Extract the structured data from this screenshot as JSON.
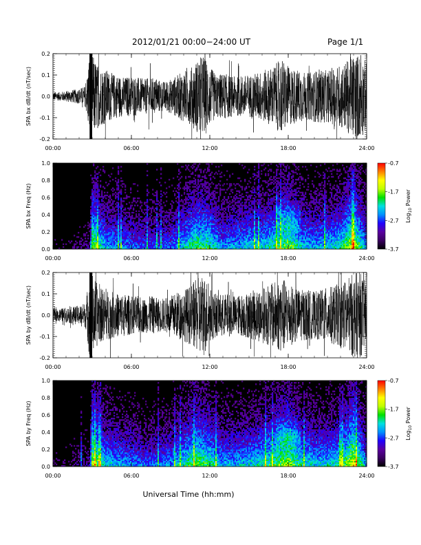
{
  "header": {
    "title": "2012/01/21  00:00−24:00 UT",
    "page": "Page 1/1"
  },
  "footer": {
    "xlabel": "Universal Time (hh:mm)"
  },
  "colorbar": {
    "label_base": "Log",
    "label_sub": "10",
    "label_tail": " Power",
    "ticks": [
      "-0.7",
      "-1.7",
      "-2.7",
      "-3.7"
    ],
    "range": [
      -3.7,
      -0.7
    ]
  },
  "colors": {
    "trace": "#000000",
    "spectrogram_background": "#000000",
    "colormap": [
      "#000000",
      "#3a0060",
      "#5a00a0",
      "#2000ff",
      "#0090ff",
      "#00e0e0",
      "#00e000",
      "#c0ff00",
      "#ffff00",
      "#ff8000",
      "#ff0000"
    ]
  },
  "chart_data": [
    {
      "type": "line",
      "ylabel": "SPA bx dB/dt (nT/sec)",
      "xticks": [
        "00:00",
        "06:00",
        "12:00",
        "18:00",
        "24:00"
      ],
      "yticks": [
        "-0.2",
        "-0.1",
        "0.0",
        "0.1",
        "0.2"
      ],
      "xlim_hours": [
        0,
        24
      ],
      "ylim": [
        -0.2,
        0.2
      ],
      "series": [
        {
          "x_hours": [
            0,
            0.5,
            1,
            1.5,
            2,
            2.5,
            2.8,
            3,
            3.5,
            4,
            4.5,
            5,
            5.5,
            6,
            6.5,
            7,
            7.5,
            8,
            8.5,
            9,
            9.5,
            10,
            10.5,
            11,
            11.5,
            12,
            12.5,
            13,
            13.5,
            14,
            14.5,
            15,
            15.5,
            16,
            16.5,
            17,
            17.5,
            18,
            18.5,
            19,
            19.5,
            20,
            20.5,
            21,
            21.5,
            22,
            22.5,
            23,
            23.5,
            24
          ],
          "envelope_amplitude": [
            0.02,
            0.02,
            0.025,
            0.03,
            0.035,
            0.05,
            0.2,
            0.2,
            0.14,
            0.13,
            0.11,
            0.1,
            0.09,
            0.1,
            0.09,
            0.08,
            0.09,
            0.08,
            0.07,
            0.08,
            0.1,
            0.12,
            0.13,
            0.17,
            0.2,
            0.14,
            0.1,
            0.11,
            0.1,
            0.09,
            0.1,
            0.1,
            0.11,
            0.12,
            0.13,
            0.15,
            0.18,
            0.14,
            0.13,
            0.12,
            0.11,
            0.12,
            0.13,
            0.12,
            0.14,
            0.15,
            0.17,
            0.2,
            0.2,
            0.16
          ]
        }
      ]
    },
    {
      "type": "heatmap",
      "ylabel": "SPA bx Freq (Hz)",
      "xticks": [
        "00:00",
        "06:00",
        "12:00",
        "18:00",
        "24:00"
      ],
      "yticks": [
        "0.0",
        "0.2",
        "0.4",
        "0.6",
        "0.8",
        "1.0"
      ],
      "xlim_hours": [
        0,
        24
      ],
      "ylim": [
        0,
        1.0
      ],
      "zlim": [
        -3.7,
        -0.7
      ],
      "activity": {
        "x_hours": [
          0,
          1,
          2,
          2.8,
          3,
          4,
          5,
          6,
          7,
          8,
          9,
          10,
          11,
          12,
          13,
          14,
          15,
          16,
          17,
          18,
          19,
          20,
          21,
          22,
          23,
          24
        ],
        "level": [
          0.1,
          0.1,
          0.15,
          0.2,
          0.85,
          0.55,
          0.5,
          0.45,
          0.4,
          0.4,
          0.45,
          0.6,
          0.75,
          0.7,
          0.5,
          0.55,
          0.6,
          0.6,
          0.7,
          0.8,
          0.6,
          0.55,
          0.6,
          0.65,
          0.9,
          0.5
        ]
      }
    },
    {
      "type": "line",
      "ylabel": "SPA by dB/dt (nT/sec)",
      "xticks": [
        "00:00",
        "06:00",
        "12:00",
        "18:00",
        "24:00"
      ],
      "yticks": [
        "-0.2",
        "-0.1",
        "0.0",
        "0.1",
        "0.2"
      ],
      "xlim_hours": [
        0,
        24
      ],
      "ylim": [
        -0.2,
        0.2
      ],
      "series": [
        {
          "x_hours": [
            0,
            0.5,
            1,
            1.5,
            2,
            2.5,
            2.8,
            3,
            3.5,
            4,
            4.5,
            5,
            5.5,
            6,
            6.5,
            7,
            7.5,
            8,
            8.5,
            9,
            9.5,
            10,
            10.5,
            11,
            11.5,
            12,
            12.5,
            13,
            13.5,
            14,
            14.5,
            15,
            15.5,
            16,
            16.5,
            17,
            17.5,
            18,
            18.5,
            19,
            19.5,
            20,
            20.5,
            21,
            21.5,
            22,
            22.5,
            23,
            23.5,
            24
          ],
          "envelope_amplitude": [
            0.03,
            0.03,
            0.035,
            0.04,
            0.045,
            0.06,
            0.2,
            0.2,
            0.13,
            0.12,
            0.11,
            0.1,
            0.1,
            0.09,
            0.09,
            0.08,
            0.09,
            0.08,
            0.08,
            0.09,
            0.11,
            0.12,
            0.14,
            0.17,
            0.2,
            0.13,
            0.1,
            0.1,
            0.1,
            0.09,
            0.1,
            0.11,
            0.12,
            0.13,
            0.14,
            0.16,
            0.18,
            0.15,
            0.13,
            0.12,
            0.12,
            0.11,
            0.12,
            0.13,
            0.14,
            0.15,
            0.17,
            0.2,
            0.2,
            0.15
          ]
        }
      ]
    },
    {
      "type": "heatmap",
      "ylabel": "SPA by Freq (Hz)",
      "xticks": [
        "00:00",
        "06:00",
        "12:00",
        "18:00",
        "24:00"
      ],
      "yticks": [
        "0.0",
        "0.2",
        "0.4",
        "0.6",
        "0.8",
        "1.0"
      ],
      "xlim_hours": [
        0,
        24
      ],
      "ylim": [
        0,
        1.0
      ],
      "zlim": [
        -3.7,
        -0.7
      ],
      "activity": {
        "x_hours": [
          0,
          1,
          2,
          2.8,
          3,
          4,
          5,
          6,
          7,
          8,
          9,
          10,
          11,
          12,
          13,
          14,
          15,
          16,
          17,
          18,
          19,
          20,
          21,
          22,
          23,
          24
        ],
        "level": [
          0.12,
          0.12,
          0.18,
          0.25,
          0.9,
          0.6,
          0.55,
          0.5,
          0.45,
          0.45,
          0.5,
          0.65,
          0.8,
          0.7,
          0.55,
          0.55,
          0.6,
          0.65,
          0.75,
          0.85,
          0.65,
          0.6,
          0.6,
          0.65,
          0.95,
          0.5
        ]
      }
    }
  ]
}
